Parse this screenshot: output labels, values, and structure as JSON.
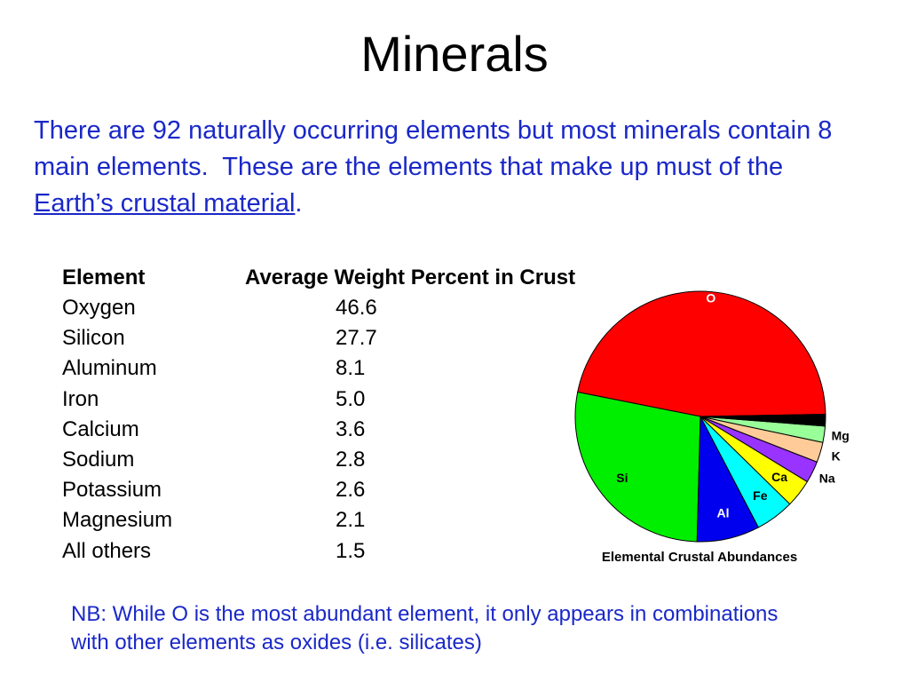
{
  "slide": {
    "title": "Minerals",
    "intro": [
      "There are 92 naturally occurring elements but most minerals contain 8 main elements.  These are the elements that make up must of the ",
      "Earth’s crustal material",
      "."
    ],
    "table": {
      "header": [
        "Element",
        "Average Weight Percent in Crust"
      ],
      "rows": [
        [
          "Oxygen",
          "46.6"
        ],
        [
          "Silicon",
          "27.7"
        ],
        [
          "Aluminum",
          "8.1"
        ],
        [
          "Iron",
          "5.0"
        ],
        [
          "Calcium",
          "3.6"
        ],
        [
          "Sodium",
          "2.8"
        ],
        [
          "Potassium",
          "2.6"
        ],
        [
          "Magnesium",
          "2.1"
        ],
        [
          "All others",
          "1.5"
        ]
      ]
    },
    "note": "NB:  While O is the most abundant element, it only appears in combinations with other elements as oxides (i.e. silicates)"
  },
  "chart_data": {
    "type": "pie",
    "title": "Elemental Crustal Abundances",
    "categories": [
      "O",
      "Si",
      "Al",
      "Fe",
      "Ca",
      "Na",
      "K",
      "Mg",
      null
    ],
    "values": [
      46.6,
      27.7,
      8.1,
      5.0,
      3.6,
      2.8,
      2.6,
      2.1,
      1.5
    ],
    "colors": [
      "#ff0000",
      "#00ee00",
      "#0000ee",
      "#00ffff",
      "#ffff00",
      "#9933ff",
      "#ffcc99",
      "#99ff99",
      "#000000"
    ],
    "label_colors": [
      "#ffffff",
      "#000000",
      "#ffffff",
      "#000000",
      "#000000",
      "#000000",
      "#000000",
      "#000000",
      "#000000"
    ]
  }
}
